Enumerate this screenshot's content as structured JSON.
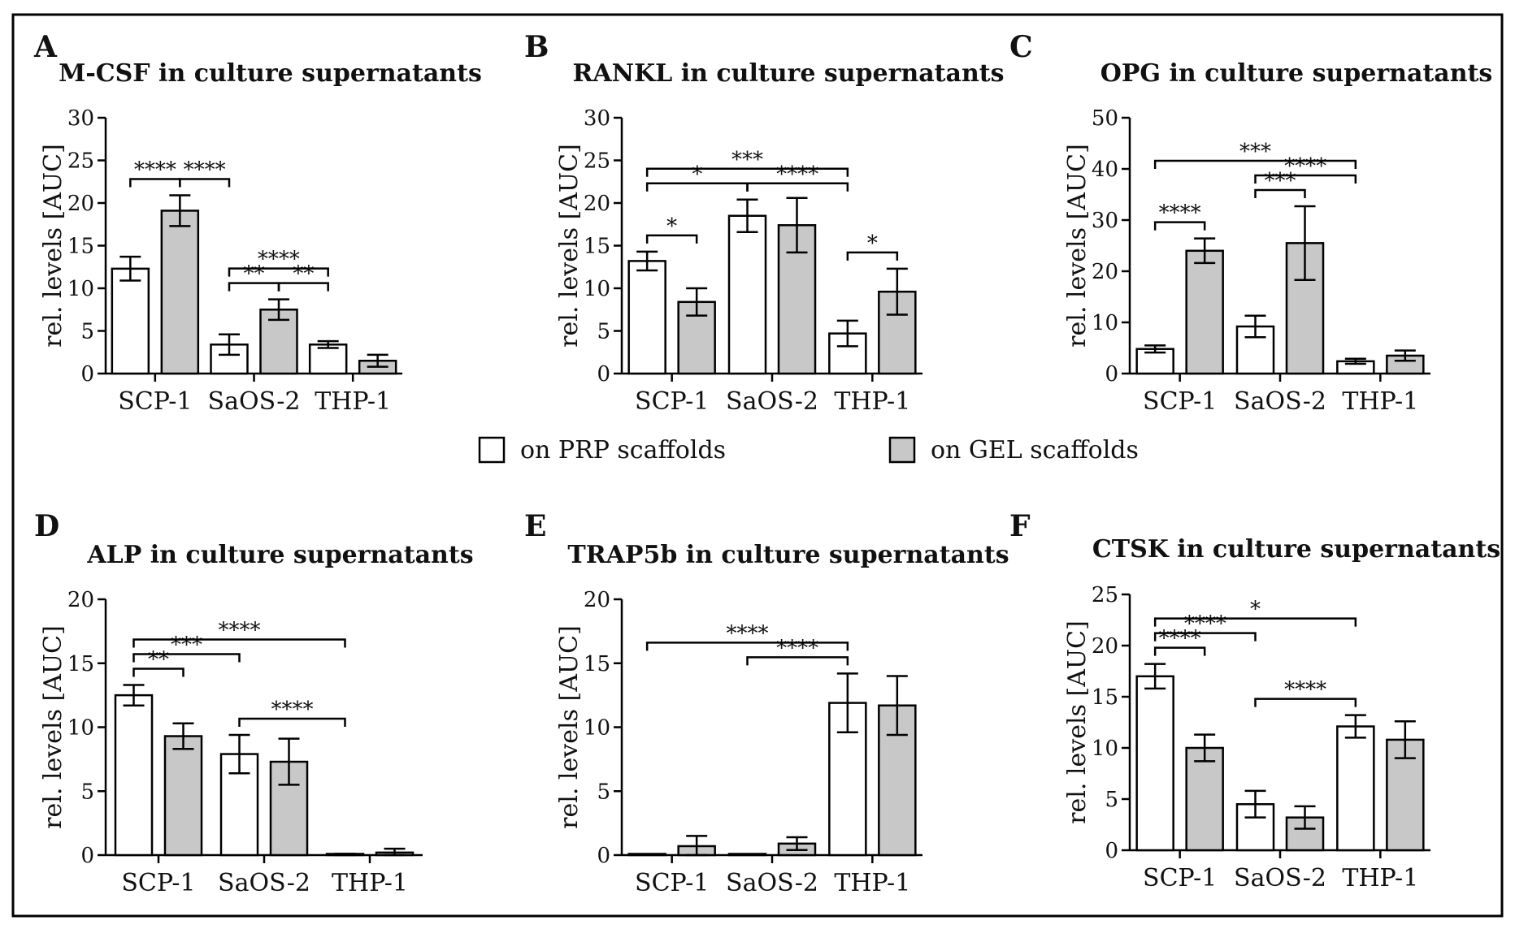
{
  "legend": [
    {
      "label": "on PRP scaffolds",
      "color": "#ffffff"
    },
    {
      "label": "on GEL scaffolds",
      "color": "#c8c8c8"
    }
  ],
  "chart_data": [
    {
      "letter": "A",
      "type": "bar",
      "title": "M-CSF in culture supernatants",
      "ylabel": "rel. levels [AUC]",
      "ylim": [
        0,
        30
      ],
      "yticks": [
        0,
        5,
        10,
        15,
        20,
        25,
        30
      ],
      "categories": [
        "SCP-1",
        "SaOS-2",
        "THP-1"
      ],
      "series": [
        {
          "values": [
            12.3,
            3.4,
            3.4
          ],
          "errors": [
            1.4,
            1.2,
            0.4
          ]
        },
        {
          "values": [
            19.1,
            7.5,
            1.5
          ],
          "errors": [
            1.8,
            1.2,
            0.7
          ]
        }
      ],
      "significance": [
        {
          "from": [
            0,
            0
          ],
          "to": [
            0,
            1
          ],
          "label": "****"
        },
        {
          "from": [
            1,
            0
          ],
          "to": [
            1,
            1
          ],
          "label": "**"
        },
        {
          "from": [
            0,
            1
          ],
          "to": [
            1,
            0
          ],
          "label": "****"
        },
        {
          "from": [
            1,
            0
          ],
          "to": [
            2,
            0
          ],
          "label": "****"
        },
        {
          "from": [
            1,
            1
          ],
          "to": [
            2,
            0
          ],
          "label": "**"
        }
      ]
    },
    {
      "letter": "B",
      "type": "bar",
      "title": "RANKL in culture supernatants",
      "ylabel": "rel. levels [AUC]",
      "ylim": [
        0,
        30
      ],
      "yticks": [
        0,
        5,
        10,
        15,
        20,
        25,
        30
      ],
      "categories": [
        "SCP-1",
        "SaOS-2",
        "THP-1"
      ],
      "series": [
        {
          "values": [
            13.2,
            18.5,
            4.7
          ],
          "errors": [
            1.1,
            1.9,
            1.5
          ]
        },
        {
          "values": [
            8.4,
            17.4,
            9.6
          ],
          "errors": [
            1.6,
            3.2,
            2.7
          ]
        }
      ],
      "significance": [
        {
          "from": [
            0,
            0
          ],
          "to": [
            0,
            1
          ],
          "label": "*"
        },
        {
          "from": [
            2,
            0
          ],
          "to": [
            2,
            1
          ],
          "label": "*"
        },
        {
          "from": [
            0,
            0
          ],
          "to": [
            1,
            0
          ],
          "label": "*"
        },
        {
          "from": [
            1,
            0
          ],
          "to": [
            2,
            0
          ],
          "label": "****"
        },
        {
          "from": [
            0,
            0
          ],
          "to": [
            2,
            0
          ],
          "label": "***"
        }
      ]
    },
    {
      "letter": "C",
      "type": "bar",
      "title": "OPG in culture supernatants",
      "ylabel": "rel. levels [AUC]",
      "ylim": [
        0,
        50
      ],
      "yticks": [
        0,
        10,
        20,
        30,
        40,
        50
      ],
      "categories": [
        "SCP-1",
        "SaOS-2",
        "THP-1"
      ],
      "series": [
        {
          "values": [
            4.8,
            9.2,
            2.4
          ],
          "errors": [
            0.7,
            2.1,
            0.5
          ]
        },
        {
          "values": [
            24.0,
            25.5,
            3.5
          ],
          "errors": [
            2.4,
            7.2,
            1.0
          ]
        }
      ],
      "significance": [
        {
          "from": [
            0,
            0
          ],
          "to": [
            0,
            1
          ],
          "label": "****"
        },
        {
          "from": [
            1,
            0
          ],
          "to": [
            1,
            1
          ],
          "label": "***"
        },
        {
          "from": [
            1,
            0
          ],
          "to": [
            2,
            0
          ],
          "label": "****"
        },
        {
          "from": [
            0,
            0
          ],
          "to": [
            2,
            0
          ],
          "label": "***"
        }
      ]
    },
    {
      "letter": "D",
      "type": "bar",
      "title": "ALP in culture supernatants",
      "ylabel": "rel. levels [AUC]",
      "ylim": [
        0,
        20
      ],
      "yticks": [
        0,
        5,
        10,
        15,
        20
      ],
      "categories": [
        "SCP-1",
        "SaOS-2",
        "THP-1"
      ],
      "series": [
        {
          "values": [
            12.5,
            7.9,
            0.05
          ],
          "errors": [
            0.8,
            1.5,
            0.05
          ]
        },
        {
          "values": [
            9.3,
            7.3,
            0.2
          ],
          "errors": [
            1.0,
            1.8,
            0.3
          ]
        }
      ],
      "significance": [
        {
          "from": [
            0,
            0
          ],
          "to": [
            0,
            1
          ],
          "label": "**"
        },
        {
          "from": [
            0,
            0
          ],
          "to": [
            1,
            0
          ],
          "label": "***"
        },
        {
          "from": [
            0,
            0
          ],
          "to": [
            2,
            0
          ],
          "label": "****"
        },
        {
          "from": [
            1,
            0
          ],
          "to": [
            2,
            0
          ],
          "label": "****"
        }
      ]
    },
    {
      "letter": "E",
      "type": "bar",
      "title": "TRAP5b in culture supernatants",
      "ylabel": "rel. levels [AUC]",
      "ylim": [
        0,
        20
      ],
      "yticks": [
        0,
        5,
        10,
        15,
        20
      ],
      "categories": [
        "SCP-1",
        "SaOS-2",
        "THP-1"
      ],
      "series": [
        {
          "values": [
            0.0,
            0.0,
            11.9
          ],
          "errors": [
            0.0,
            0.0,
            2.3
          ]
        },
        {
          "values": [
            0.7,
            0.9,
            11.7
          ],
          "errors": [
            0.8,
            0.5,
            2.3
          ]
        }
      ],
      "significance": [
        {
          "from": [
            1,
            0
          ],
          "to": [
            2,
            0
          ],
          "label": "****"
        },
        {
          "from": [
            0,
            0
          ],
          "to": [
            2,
            0
          ],
          "label": "****"
        }
      ]
    },
    {
      "letter": "F",
      "type": "bar",
      "title": "CTSK in culture supernatants",
      "ylabel": "rel. levels [AUC]",
      "ylim": [
        0,
        25
      ],
      "yticks": [
        0,
        5,
        10,
        15,
        20,
        25
      ],
      "categories": [
        "SCP-1",
        "SaOS-2",
        "THP-1"
      ],
      "series": [
        {
          "values": [
            17.0,
            4.5,
            12.1
          ],
          "errors": [
            1.2,
            1.3,
            1.1
          ]
        },
        {
          "values": [
            10.0,
            3.2,
            10.8
          ],
          "errors": [
            1.3,
            1.1,
            1.8
          ]
        }
      ],
      "significance": [
        {
          "from": [
            0,
            0
          ],
          "to": [
            0,
            1
          ],
          "label": "****"
        },
        {
          "from": [
            0,
            0
          ],
          "to": [
            1,
            0
          ],
          "label": "****"
        },
        {
          "from": [
            0,
            0
          ],
          "to": [
            2,
            0
          ],
          "label": "*"
        },
        {
          "from": [
            1,
            0
          ],
          "to": [
            2,
            0
          ],
          "label": "****"
        }
      ]
    }
  ]
}
